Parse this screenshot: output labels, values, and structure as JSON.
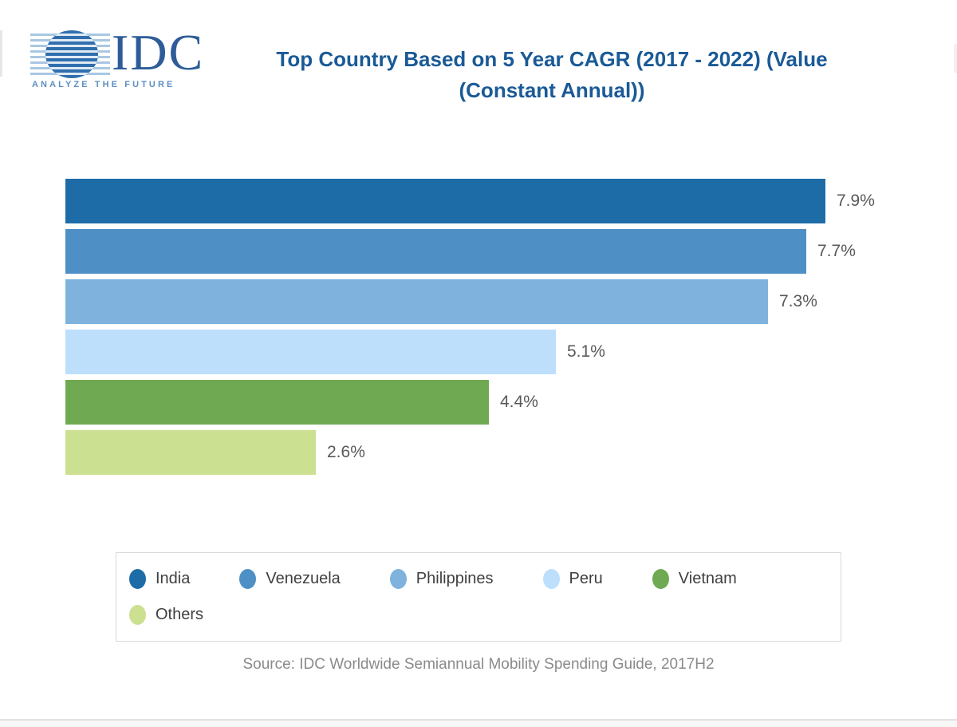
{
  "logo": {
    "brand": "IDC",
    "tagline": "ANALYZE THE FUTURE"
  },
  "header": {
    "title_line1": "Top Country Based on 5 Year CAGR (2017 - 2022) (Value",
    "title_line2": "(Constant Annual))",
    "title_color": "#1A5A96"
  },
  "chart_data": {
    "type": "bar",
    "orientation": "horizontal",
    "title": "Top Country Based on 5 Year CAGR (2017 - 2022) (Value (Constant Annual))",
    "categories": [
      "India",
      "Venezuela",
      "Philippines",
      "Peru",
      "Vietnam",
      "Others"
    ],
    "values": [
      7.9,
      7.7,
      7.3,
      5.1,
      4.4,
      2.6
    ],
    "value_labels": [
      "7.9%",
      "7.7%",
      "7.3%",
      "5.1%",
      "4.4%",
      "2.6%"
    ],
    "colors": [
      "#1E6CA7",
      "#4E90C5",
      "#7FB3DD",
      "#BDDFFC",
      "#6FAA53",
      "#CCE091"
    ],
    "unit": "%",
    "xlim": [
      0,
      8.2
    ],
    "grid": false,
    "axis_labels_shown": false,
    "legend_position": "bottom",
    "legend_items_per_row": 5
  },
  "footer": {
    "source": "Source: IDC Worldwide Semiannual Mobility Spending Guide, 2017H2"
  }
}
